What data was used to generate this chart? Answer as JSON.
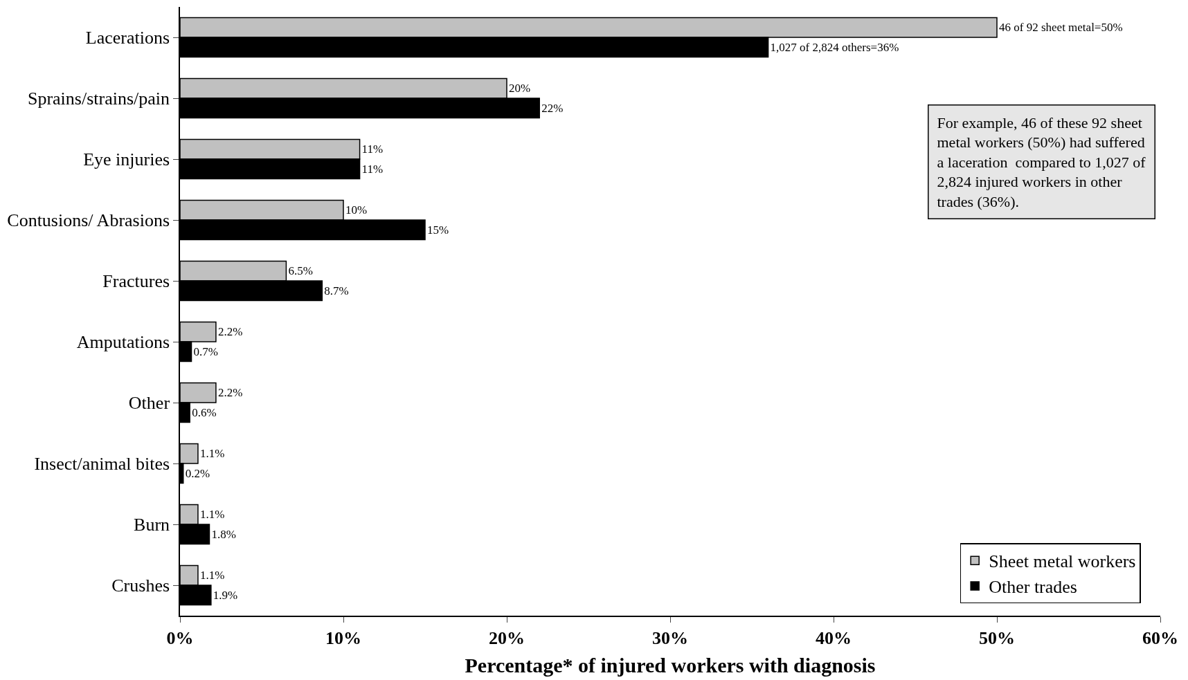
{
  "chart_data": {
    "type": "bar",
    "orientation": "horizontal",
    "xlabel": "Percentage* of injured workers with diagnosis",
    "categories": [
      "Lacerations",
      "Sprains/strains/pain",
      "Eye injuries",
      "Contusions/ Abrasions",
      "Fractures",
      "Amputations",
      "Other",
      "Insect/animal bites",
      "Burn",
      "Crushes"
    ],
    "series": [
      {
        "name": "Sheet metal workers",
        "color": "#c0c0c0",
        "values": [
          50,
          20,
          11,
          10,
          6.5,
          2.2,
          2.2,
          1.1,
          1.1,
          1.1
        ],
        "value_labels": [
          "46 of 92 sheet metal=50%",
          "20%",
          "11%",
          "10%",
          "6.5%",
          "2.2%",
          "2.2%",
          "1.1%",
          "1.1%",
          "1.1%"
        ]
      },
      {
        "name": "Other trades",
        "color": "#000000",
        "values": [
          36,
          22,
          11,
          15,
          8.7,
          0.7,
          0.6,
          0.2,
          1.8,
          1.9
        ],
        "value_labels": [
          "1,027 of 2,824 others=36%",
          "22%",
          "11%",
          "15%",
          "8.7%",
          "0.7%",
          "0.6%",
          "0.2%",
          "1.8%",
          "1.9%"
        ]
      }
    ],
    "xlim": [
      0,
      60
    ],
    "xticks": [
      {
        "value": 0,
        "label": "0%"
      },
      {
        "value": 10,
        "label": "10%"
      },
      {
        "value": 20,
        "label": "20%"
      },
      {
        "value": 30,
        "label": "30%"
      },
      {
        "value": 40,
        "label": "40%"
      },
      {
        "value": 50,
        "label": "50%"
      },
      {
        "value": 60,
        "label": "60%"
      }
    ],
    "legend": "bottom right",
    "annotations": [
      "For example, 46 of these 92 sheet\nmetal workers (50%) had suffered\na laceration  compared to 1,027 of\n2,824 injured workers in other\ntrades (36%)."
    ]
  }
}
